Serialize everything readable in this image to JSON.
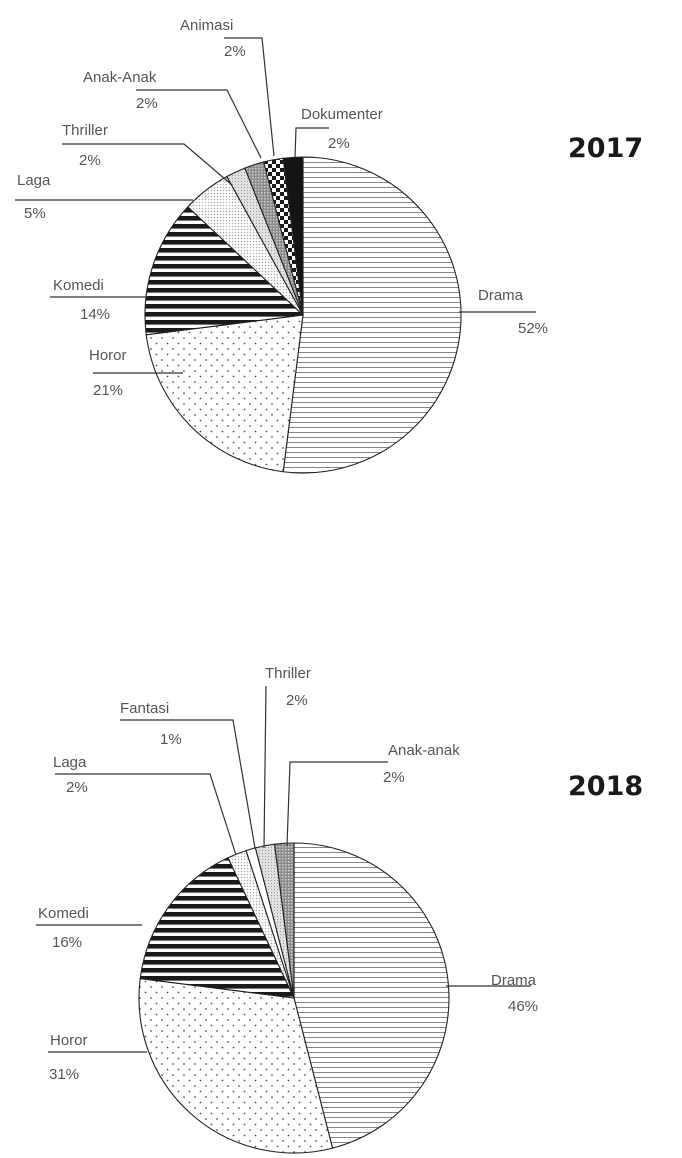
{
  "chart_data": [
    {
      "type": "pie",
      "title": "2017",
      "slices": [
        {
          "name": "Drama",
          "value": 52,
          "label": "52%",
          "pattern": "hlines"
        },
        {
          "name": "Horor",
          "value": 21,
          "label": "21%",
          "pattern": "dots"
        },
        {
          "name": "Komedi",
          "value": 14,
          "label": "14%",
          "pattern": "thickstripes"
        },
        {
          "name": "Laga",
          "value": 5,
          "label": "5%",
          "pattern": "finedots"
        },
        {
          "name": "Thriller",
          "value": 2,
          "label": "2%",
          "pattern": "lightgray"
        },
        {
          "name": "Anak-Anak",
          "value": 2,
          "label": "2%",
          "pattern": "crosshatch"
        },
        {
          "name": "Animasi",
          "value": 2,
          "label": "2%",
          "pattern": "checker"
        },
        {
          "name": "Dokumenter",
          "value": 2,
          "label": "2%",
          "pattern": "solid"
        }
      ]
    },
    {
      "type": "pie",
      "title": "2018",
      "slices": [
        {
          "name": "Drama",
          "value": 46,
          "label": "46%",
          "pattern": "hlines"
        },
        {
          "name": "Horor",
          "value": 31,
          "label": "31%",
          "pattern": "dots"
        },
        {
          "name": "Komedi",
          "value": 16,
          "label": "16%",
          "pattern": "thickstripes"
        },
        {
          "name": "Laga",
          "value": 2,
          "label": "2%",
          "pattern": "finedots"
        },
        {
          "name": "Fantasi",
          "value": 1,
          "label": "1%",
          "pattern": "white"
        },
        {
          "name": "Thriller",
          "value": 2,
          "label": "2%",
          "pattern": "lightgray"
        },
        {
          "name": "Anak-anak",
          "value": 2,
          "label": "2%",
          "pattern": "crosshatch"
        }
      ]
    }
  ]
}
